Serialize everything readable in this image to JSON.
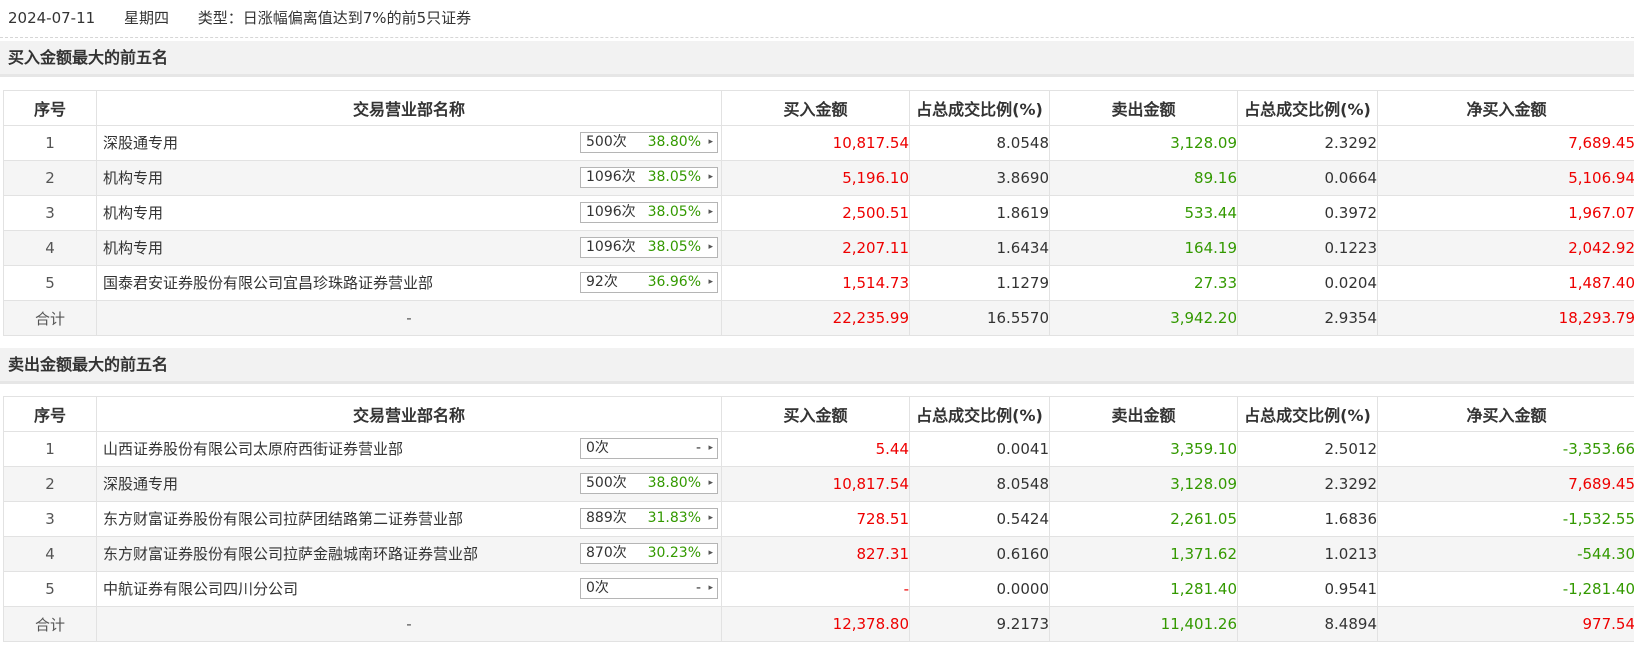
{
  "header": {
    "date": "2024-07-11",
    "weekday": "星期四",
    "type_text": "类型：日涨幅偏离值达到7%的前5只证券"
  },
  "columns": [
    "序号",
    "交易营业部名称",
    "买入金额",
    "占总成交比例(%)",
    "卖出金额",
    "占总成交比例(%)",
    "净买入金额"
  ],
  "colors": {
    "up": "#ee0000",
    "down": "#339900",
    "pill_pct": "#339900"
  },
  "buy_section": {
    "title": "买入金额最大的前五名",
    "rows": [
      {
        "idx": "1",
        "name": "深股通专用",
        "count": "500次",
        "pct": "38.80%",
        "buy": "10,817.54",
        "buy_ratio": "8.0548",
        "sell": "3,128.09",
        "sell_ratio": "2.3292",
        "net": "7,689.45",
        "net_color": "red"
      },
      {
        "idx": "2",
        "name": "机构专用",
        "count": "1096次",
        "pct": "38.05%",
        "buy": "5,196.10",
        "buy_ratio": "3.8690",
        "sell": "89.16",
        "sell_ratio": "0.0664",
        "net": "5,106.94",
        "net_color": "red"
      },
      {
        "idx": "3",
        "name": "机构专用",
        "count": "1096次",
        "pct": "38.05%",
        "buy": "2,500.51",
        "buy_ratio": "1.8619",
        "sell": "533.44",
        "sell_ratio": "0.3972",
        "net": "1,967.07",
        "net_color": "red"
      },
      {
        "idx": "4",
        "name": "机构专用",
        "count": "1096次",
        "pct": "38.05%",
        "buy": "2,207.11",
        "buy_ratio": "1.6434",
        "sell": "164.19",
        "sell_ratio": "0.1223",
        "net": "2,042.92",
        "net_color": "red"
      },
      {
        "idx": "5",
        "name": "国泰君安证券股份有限公司宜昌珍珠路证券营业部",
        "count": "92次",
        "pct": "36.96%",
        "buy": "1,514.73",
        "buy_ratio": "1.1279",
        "sell": "27.33",
        "sell_ratio": "0.0204",
        "net": "1,487.40",
        "net_color": "red"
      }
    ],
    "total": {
      "label": "合计",
      "name": "-",
      "buy": "22,235.99",
      "buy_ratio": "16.5570",
      "sell": "3,942.20",
      "sell_ratio": "2.9354",
      "net": "18,293.79",
      "net_color": "red"
    }
  },
  "sell_section": {
    "title": "卖出金额最大的前五名",
    "rows": [
      {
        "idx": "1",
        "name": "山西证券股份有限公司太原府西街证券营业部",
        "count": "0次",
        "pct": "-",
        "buy": "5.44",
        "buy_ratio": "0.0041",
        "sell": "3,359.10",
        "sell_ratio": "2.5012",
        "net": "-3,353.66",
        "net_color": "green"
      },
      {
        "idx": "2",
        "name": "深股通专用",
        "count": "500次",
        "pct": "38.80%",
        "buy": "10,817.54",
        "buy_ratio": "8.0548",
        "sell": "3,128.09",
        "sell_ratio": "2.3292",
        "net": "7,689.45",
        "net_color": "red"
      },
      {
        "idx": "3",
        "name": "东方财富证券股份有限公司拉萨团结路第二证券营业部",
        "count": "889次",
        "pct": "31.83%",
        "buy": "728.51",
        "buy_ratio": "0.5424",
        "sell": "2,261.05",
        "sell_ratio": "1.6836",
        "net": "-1,532.55",
        "net_color": "green"
      },
      {
        "idx": "4",
        "name": "东方财富证券股份有限公司拉萨金融城南环路证券营业部",
        "count": "870次",
        "pct": "30.23%",
        "buy": "827.31",
        "buy_ratio": "0.6160",
        "sell": "1,371.62",
        "sell_ratio": "1.0213",
        "net": "-544.30",
        "net_color": "green"
      },
      {
        "idx": "5",
        "name": "中航证券有限公司四川分公司",
        "count": "0次",
        "pct": "-",
        "buy": "-",
        "buy_ratio": "0.0000",
        "sell": "1,281.40",
        "sell_ratio": "0.9541",
        "net": "-1,281.40",
        "net_color": "green"
      }
    ],
    "total": {
      "label": "合计",
      "name": "-",
      "buy": "12,378.80",
      "buy_ratio": "9.2173",
      "sell": "11,401.26",
      "sell_ratio": "8.4894",
      "net": "977.54",
      "net_color": "red"
    }
  }
}
